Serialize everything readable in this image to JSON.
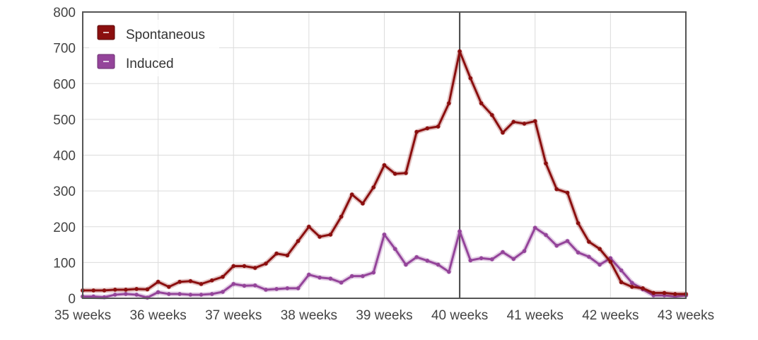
{
  "chart_data": {
    "type": "line",
    "title": "",
    "xlabel": "",
    "ylabel": "",
    "ylim": [
      0,
      800
    ],
    "yticks": [
      0,
      100,
      200,
      300,
      400,
      500,
      600,
      700,
      800
    ],
    "xlim": [
      35,
      43
    ],
    "xticks": [
      {
        "value": 35,
        "label": "35 weeks"
      },
      {
        "value": 36,
        "label": "36 weeks"
      },
      {
        "value": 37,
        "label": "37 weeks"
      },
      {
        "value": 38,
        "label": "38 weeks"
      },
      {
        "value": 39,
        "label": "39 weeks"
      },
      {
        "value": 40,
        "label": "40 weeks"
      },
      {
        "value": 41,
        "label": "41 weeks"
      },
      {
        "value": 42,
        "label": "42 weeks"
      },
      {
        "value": 43,
        "label": "43 weeks"
      }
    ],
    "grid": true,
    "legend_position": "top-left",
    "reference_line_x": 40,
    "x": [
      35,
      35.143,
      35.286,
      35.429,
      35.571,
      35.714,
      35.857,
      36,
      36.143,
      36.286,
      36.429,
      36.571,
      36.714,
      36.857,
      37,
      37.143,
      37.286,
      37.429,
      37.571,
      37.714,
      37.857,
      38,
      38.143,
      38.286,
      38.429,
      38.571,
      38.714,
      38.857,
      39,
      39.143,
      39.286,
      39.429,
      39.571,
      39.714,
      39.857,
      40,
      40.143,
      40.286,
      40.429,
      40.571,
      40.714,
      40.857,
      41,
      41.143,
      41.286,
      41.429,
      41.571,
      41.714,
      41.857,
      42,
      42.143,
      42.286,
      42.429,
      42.571,
      42.714,
      42.857,
      43
    ],
    "series": [
      {
        "name": "Spontaneous",
        "color": "#8b0f0f",
        "values": [
          22,
          22,
          22,
          24,
          24,
          26,
          25,
          46,
          32,
          46,
          48,
          40,
          50,
          60,
          90,
          90,
          85,
          97,
          125,
          120,
          160,
          200,
          172,
          178,
          228,
          290,
          265,
          310,
          372,
          348,
          350,
          465,
          475,
          480,
          545,
          690,
          615,
          545,
          512,
          463,
          493,
          488,
          495,
          377,
          305,
          295,
          210,
          158,
          138,
          102,
          45,
          32,
          28,
          15,
          15,
          12,
          12
        ]
      },
      {
        "name": "Induced",
        "color": "#94449a",
        "values": [
          5,
          5,
          3,
          10,
          12,
          10,
          2,
          17,
          12,
          12,
          10,
          10,
          12,
          18,
          40,
          35,
          36,
          24,
          26,
          28,
          28,
          66,
          58,
          55,
          44,
          62,
          62,
          72,
          178,
          138,
          94,
          115,
          105,
          94,
          74,
          187,
          106,
          112,
          109,
          129,
          110,
          132,
          197,
          177,
          147,
          160,
          128,
          116,
          94,
          112,
          78,
          43,
          25,
          8,
          8,
          5,
          8
        ]
      }
    ]
  }
}
